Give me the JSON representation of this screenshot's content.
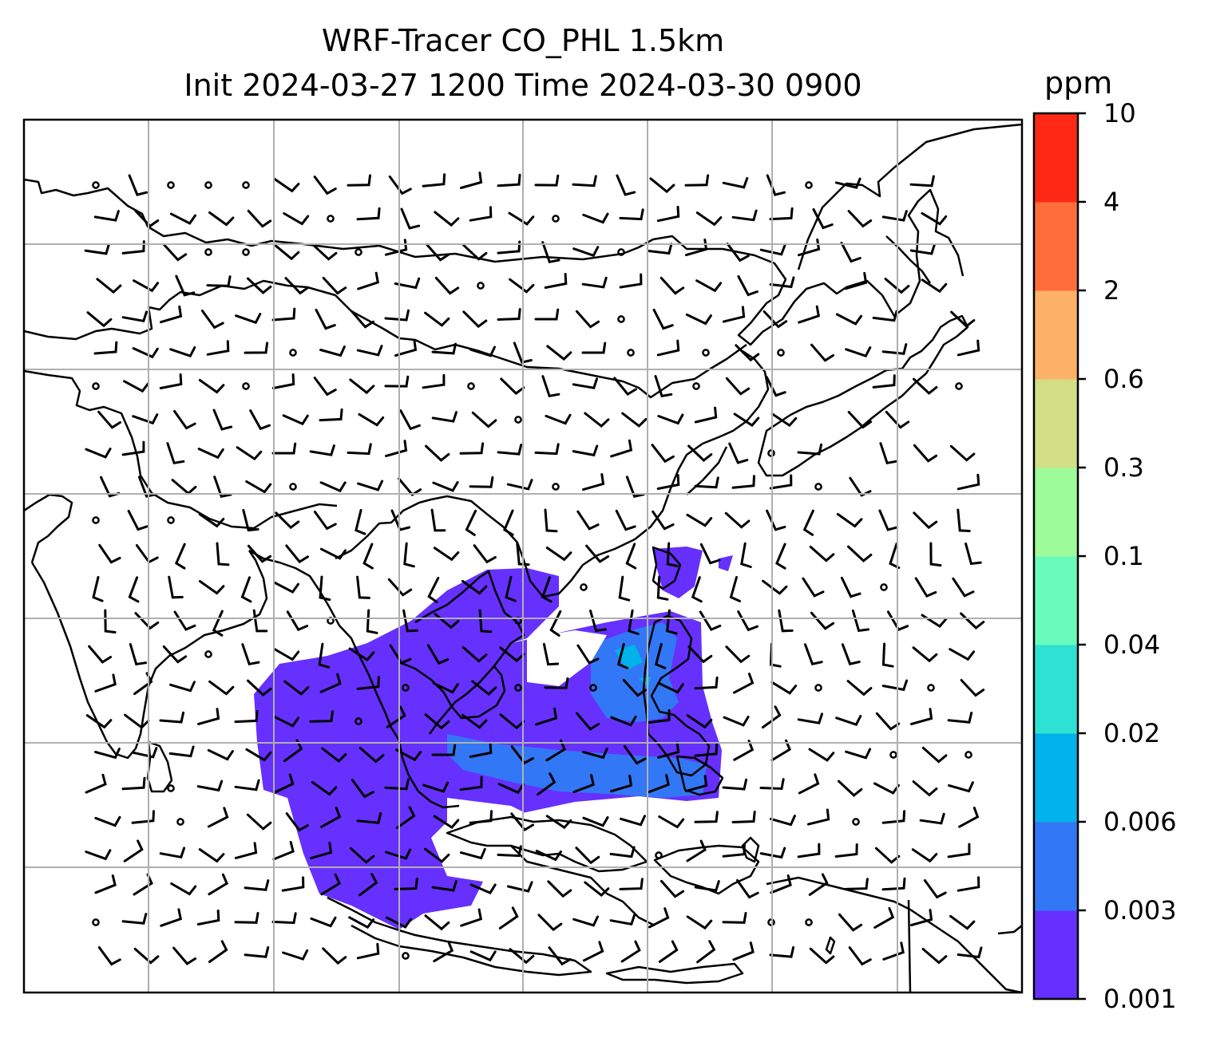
{
  "title": {
    "line1": "WRF-Tracer CO_PHL 1.5km",
    "line2": "Init 2024-03-27 1200 Time 2024-03-30 0900"
  },
  "colorbar": {
    "unit": "ppm",
    "ticks": [
      "0.001",
      "0.003",
      "0.006",
      "0.02",
      "0.04",
      "0.1",
      "0.3",
      "0.6",
      "2",
      "4",
      "10"
    ],
    "colors": [
      "#6630ff",
      "#3277f5",
      "#02b2ea",
      "#2ee1d5",
      "#68fbbb",
      "#9efb9a",
      "#d2df86",
      "#fdb166",
      "#ff6e3a",
      "#ff2916"
    ]
  },
  "map": {
    "gridlines": true,
    "coastline_color": "#000000",
    "tracer_levels_shown": [
      "0.001",
      "0.003",
      "0.006"
    ]
  }
}
